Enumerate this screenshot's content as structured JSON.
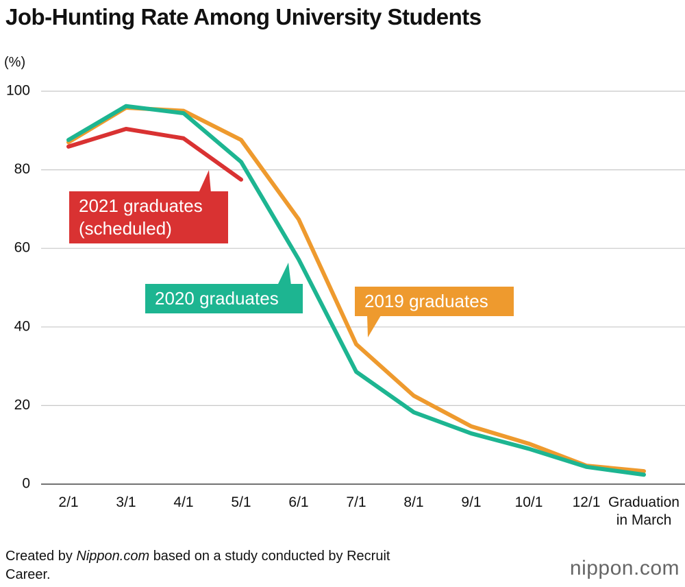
{
  "chart_data": {
    "type": "line",
    "title": "Job-Hunting Rate Among University Students",
    "y_label": "(%)",
    "categories": [
      "2/1",
      "3/1",
      "4/1",
      "5/1",
      "6/1",
      "7/1",
      "8/1",
      "9/1",
      "10/1",
      "12/1",
      "Graduation in March"
    ],
    "series": [
      {
        "name": "2019 graduates",
        "color": "#ee9a2e",
        "values": [
          87,
          95.8,
          95,
          87.6,
          67.4,
          35.6,
          22.5,
          14.7,
          10.3,
          4.7,
          3.3
        ]
      },
      {
        "name": "2020 graduates",
        "color": "#1db591",
        "values": [
          87.6,
          96.2,
          94.4,
          82,
          57.2,
          28.6,
          18.3,
          12.9,
          9,
          4.4,
          2.4
        ]
      },
      {
        "name": "2021 graduates (scheduled)",
        "color": "#d93232",
        "values": [
          85.9,
          90.4,
          88,
          77.5,
          null,
          null,
          null,
          null,
          null,
          null,
          null
        ]
      }
    ],
    "ylim": [
      0,
      100
    ],
    "yticks": [
      0,
      20,
      40,
      60,
      80,
      100
    ],
    "grid": true,
    "source": {
      "prefix": "Created by",
      "emphasis": "Nippon.com",
      "suffix": "based on a study conducted by Recruit Career."
    },
    "logo": "nippon.com"
  }
}
